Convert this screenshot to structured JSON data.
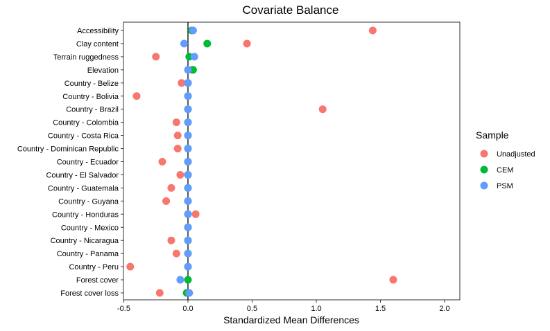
{
  "chart_data": {
    "type": "scatter",
    "title": "Covariate Balance",
    "xlabel": "Standardized Mean Differences",
    "ylabel": "",
    "xlim": [
      -0.55,
      2.1
    ],
    "x_ticks": [
      -0.5,
      0.0,
      0.5,
      1.0,
      1.5,
      2.0
    ],
    "x_tick_labels": [
      "-0.5",
      "0.0",
      "0.5",
      "1.0",
      "1.5",
      "2.0"
    ],
    "grid": false,
    "reference_line_x": 0,
    "categories": [
      "Accessibility",
      "Clay content",
      "Terrain ruggedness",
      "Elevation",
      "Country - Belize",
      "Country - Bolivia",
      "Country - Brazil",
      "Country - Colombia",
      "Country - Costa Rica",
      "Country - Dominican Republic",
      "Country - Ecuador",
      "Country - El Salvador",
      "Country - Guatemala",
      "Country - Guyana",
      "Country - Honduras",
      "Country - Mexico",
      "Country - Nicaragua",
      "Country - Panama",
      "Country - Peru",
      "Forest cover",
      "Forest cover loss"
    ],
    "series": [
      {
        "name": "Unadjusted",
        "color": "#F8766D",
        "values": [
          1.44,
          0.46,
          -0.25,
          0.03,
          -0.05,
          -0.4,
          1.05,
          -0.09,
          -0.08,
          -0.08,
          -0.2,
          -0.06,
          -0.13,
          -0.17,
          0.06,
          0.0,
          -0.13,
          -0.09,
          -0.45,
          1.6,
          -0.22
        ]
      },
      {
        "name": "CEM",
        "color": "#00BA38",
        "values": [
          0.03,
          0.15,
          0.01,
          0.04,
          0.0,
          0.0,
          0.0,
          0.0,
          0.0,
          0.0,
          0.0,
          0.0,
          0.0,
          0.0,
          0.0,
          0.0,
          0.0,
          0.0,
          0.0,
          0.0,
          -0.01
        ]
      },
      {
        "name": "PSM",
        "color": "#619CFF",
        "values": [
          0.04,
          -0.03,
          0.05,
          0.0,
          0.0,
          0.0,
          0.0,
          0.0,
          0.0,
          0.0,
          0.0,
          0.0,
          0.0,
          0.0,
          0.0,
          0.0,
          0.0,
          0.0,
          0.0,
          -0.06,
          0.01
        ]
      }
    ],
    "legend": {
      "title": "Sample",
      "position": "right"
    }
  }
}
